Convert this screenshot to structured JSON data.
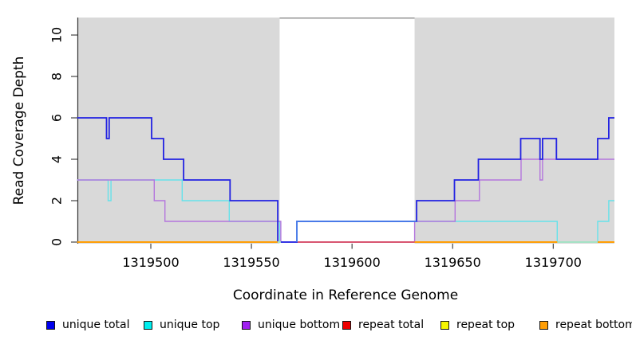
{
  "chart_data": {
    "type": "line",
    "title": "",
    "xlabel": "Coordinate in Reference Genome",
    "ylabel": "Read Coverage Depth",
    "x_ticks": [
      1319500,
      1319550,
      1319600,
      1319650,
      1319700
    ],
    "y_ticks": [
      0,
      2,
      4,
      6,
      8,
      10
    ],
    "xlim": [
      1319463.4,
      1319730.4
    ],
    "ylim": [
      0,
      11
    ],
    "grid": false,
    "legend_position": "bottom",
    "background_color": "#d9d9d9",
    "gap_border_color": "#8a8a8a",
    "shaded_regions": [
      [
        1319463.4,
        1319564.0
      ],
      [
        1319631.1,
        1319730.4
      ]
    ],
    "gap_region": [
      1319564.0,
      1319631.1
    ],
    "series": [
      {
        "name": "unique total",
        "color": "#2222e2",
        "legend_color": "#0000ee",
        "end": 1319730.4,
        "steps": [
          [
            1319463.4,
            6
          ],
          [
            1319478.0,
            5
          ],
          [
            1319479.3,
            6
          ],
          [
            1319500.4,
            5
          ],
          [
            1319506.3,
            4
          ],
          [
            1319516.3,
            3
          ],
          [
            1319539.4,
            2
          ],
          [
            1319563.1,
            0
          ],
          [
            1319572.6,
            1
          ],
          [
            1319632.1,
            2
          ],
          [
            1319650.9,
            3
          ],
          [
            1319662.8,
            4
          ],
          [
            1319683.8,
            5
          ],
          [
            1319693.4,
            4
          ],
          [
            1319694.7,
            5
          ],
          [
            1319701.6,
            4
          ],
          [
            1319722.1,
            5
          ],
          [
            1319727.6,
            6
          ]
        ]
      },
      {
        "name": "unique top",
        "color": "#66e2ea",
        "legend_color": "#00eeee",
        "end": 1319730.4,
        "steps": [
          [
            1319463.4,
            3
          ],
          [
            1319478.8,
            2
          ],
          [
            1319480.2,
            3
          ],
          [
            1319515.6,
            2
          ],
          [
            1319539.0,
            1
          ],
          [
            1319564.1,
            0
          ],
          [
            1319572.6,
            1
          ],
          [
            1319702.0,
            0
          ],
          [
            1319722.1,
            1
          ],
          [
            1319727.6,
            2
          ]
        ]
      },
      {
        "name": "unique bottom",
        "color": "#b476dd",
        "legend_color": "#a020f0",
        "end": 1319730.4,
        "steps": [
          [
            1319463.4,
            3
          ],
          [
            1319501.7,
            2
          ],
          [
            1319507.0,
            1
          ],
          [
            1319564.6,
            0
          ],
          [
            1319631.1,
            1
          ],
          [
            1319651.2,
            2
          ],
          [
            1319663.3,
            3
          ],
          [
            1319684.0,
            4
          ],
          [
            1319693.4,
            3
          ],
          [
            1319694.7,
            4
          ]
        ]
      },
      {
        "name": "repeat total",
        "color": "#d85570",
        "legend_color": "#ee0000",
        "end": 1319730.4,
        "steps": [
          [
            1319463.4,
            0
          ]
        ]
      },
      {
        "name": "repeat top",
        "color": "#f5f500",
        "legend_color": "#f5f500",
        "end": 1319730.4,
        "steps": [
          [
            1319463.4,
            0
          ]
        ]
      },
      {
        "name": "repeat bottom",
        "color": "#ff9e05",
        "legend_color": "#ff9e05",
        "end": 1319730.4,
        "steps": [
          [
            1319463.4,
            0
          ]
        ]
      }
    ],
    "middle_overlay": {
      "color": "#4a80e8",
      "from": 1319572.6,
      "to": 1319632.1,
      "value": 1
    },
    "visible_zero_segments": [
      {
        "color": "#ff9e05",
        "from": 1319463.4,
        "to": 1319563.0
      },
      {
        "color": "#a5e2c5",
        "from": 1319563.0,
        "to": 1319564.6
      },
      {
        "color": "#d85570",
        "from": 1319573.0,
        "to": 1319631.1
      },
      {
        "color": "#ff9e05",
        "from": 1319631.1,
        "to": 1319730.4
      },
      {
        "color": "#a5e2c5",
        "from": 1319702.0,
        "to": 1319722.1
      }
    ]
  },
  "legend": {
    "items": [
      {
        "label": "unique total",
        "color": "#0000ee"
      },
      {
        "label": "unique top",
        "color": "#00eeee"
      },
      {
        "label": "unique bottom",
        "color": "#a020f0"
      },
      {
        "label": "repeat total",
        "color": "#ee0000"
      },
      {
        "label": "repeat top",
        "color": "#f5f500"
      },
      {
        "label": "repeat bottom",
        "color": "#ff9e05"
      }
    ]
  }
}
